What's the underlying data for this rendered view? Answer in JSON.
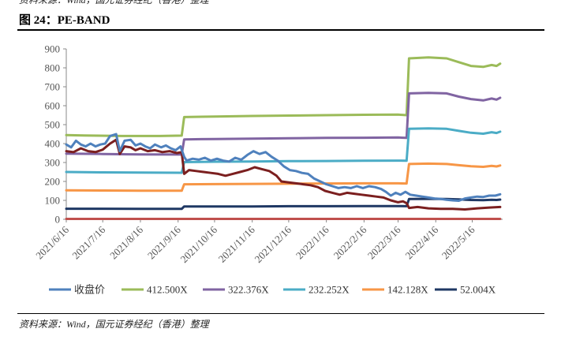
{
  "header": {
    "source_top": "资料来源：Wind，国元证券经纪（香港）整理",
    "figure_title": "图 24：PE-BAND"
  },
  "footer": {
    "source": "资料来源：Wind，国元证券经纪（香港）整理"
  },
  "chart_data": {
    "type": "line",
    "ylim": [
      0,
      900
    ],
    "yticks": [
      0,
      100,
      200,
      300,
      400,
      500,
      600,
      700,
      800,
      900
    ],
    "xlim": [
      "2021-06-16",
      "2022-06-10"
    ],
    "xtick_labels": [
      "2021/6/16",
      "2021/7/16",
      "2021/8/16",
      "2021/9/16",
      "2021/10/16",
      "2021/11/16",
      "2021/12/16",
      "2022/1/16",
      "2022/2/16",
      "2022/3/16",
      "2022/4/16",
      "2022/5/16"
    ],
    "xtick_dates": [
      "2021-06-16",
      "2021-07-16",
      "2021-08-16",
      "2021-09-16",
      "2021-10-16",
      "2021-11-16",
      "2021-12-16",
      "2022-01-16",
      "2022-02-16",
      "2022-03-16",
      "2022-04-16",
      "2022-05-16"
    ],
    "grid": false,
    "legend_position": "bottom",
    "series": [
      {
        "name": "收盘价",
        "color": "#4F81BD",
        "points": [
          [
            "2021-06-16",
            395
          ],
          [
            "2021-06-20",
            380
          ],
          [
            "2021-06-24",
            415
          ],
          [
            "2021-06-28",
            395
          ],
          [
            "2021-07-02",
            385
          ],
          [
            "2021-07-06",
            400
          ],
          [
            "2021-07-10",
            385
          ],
          [
            "2021-07-14",
            395
          ],
          [
            "2021-07-18",
            400
          ],
          [
            "2021-07-22",
            440
          ],
          [
            "2021-07-27",
            450
          ],
          [
            "2021-07-30",
            360
          ],
          [
            "2021-08-03",
            415
          ],
          [
            "2021-08-08",
            420
          ],
          [
            "2021-08-12",
            390
          ],
          [
            "2021-08-16",
            400
          ],
          [
            "2021-08-20",
            385
          ],
          [
            "2021-08-24",
            375
          ],
          [
            "2021-08-28",
            395
          ],
          [
            "2021-09-02",
            380
          ],
          [
            "2021-09-06",
            390
          ],
          [
            "2021-09-10",
            375
          ],
          [
            "2021-09-14",
            365
          ],
          [
            "2021-09-18",
            385
          ],
          [
            "2021-09-21",
            330
          ],
          [
            "2021-09-23",
            310
          ],
          [
            "2021-09-28",
            320
          ],
          [
            "2021-10-03",
            315
          ],
          [
            "2021-10-08",
            325
          ],
          [
            "2021-10-13",
            310
          ],
          [
            "2021-10-18",
            320
          ],
          [
            "2021-10-23",
            310
          ],
          [
            "2021-10-28",
            305
          ],
          [
            "2021-11-02",
            325
          ],
          [
            "2021-11-07",
            315
          ],
          [
            "2021-11-12",
            340
          ],
          [
            "2021-11-17",
            360
          ],
          [
            "2021-11-22",
            345
          ],
          [
            "2021-11-27",
            355
          ],
          [
            "2021-12-02",
            330
          ],
          [
            "2021-12-07",
            310
          ],
          [
            "2021-12-12",
            280
          ],
          [
            "2021-12-17",
            260
          ],
          [
            "2021-12-22",
            255
          ],
          [
            "2021-12-27",
            245
          ],
          [
            "2022-01-01",
            240
          ],
          [
            "2022-01-06",
            215
          ],
          [
            "2022-01-11",
            200
          ],
          [
            "2022-01-16",
            185
          ],
          [
            "2022-01-21",
            175
          ],
          [
            "2022-01-26",
            165
          ],
          [
            "2022-01-31",
            170
          ],
          [
            "2022-02-05",
            165
          ],
          [
            "2022-02-10",
            175
          ],
          [
            "2022-02-15",
            165
          ],
          [
            "2022-02-20",
            175
          ],
          [
            "2022-02-25",
            170
          ],
          [
            "2022-03-02",
            160
          ],
          [
            "2022-03-06",
            145
          ],
          [
            "2022-03-10",
            125
          ],
          [
            "2022-03-14",
            140
          ],
          [
            "2022-03-18",
            130
          ],
          [
            "2022-03-22",
            145
          ],
          [
            "2022-03-26",
            130
          ],
          [
            "2022-03-31",
            125
          ],
          [
            "2022-04-05",
            120
          ],
          [
            "2022-04-10",
            115
          ],
          [
            "2022-04-15",
            110
          ],
          [
            "2022-04-20",
            108
          ],
          [
            "2022-04-25",
            103
          ],
          [
            "2022-04-30",
            100
          ],
          [
            "2022-05-05",
            98
          ],
          [
            "2022-05-10",
            110
          ],
          [
            "2022-05-15",
            115
          ],
          [
            "2022-05-20",
            120
          ],
          [
            "2022-05-25",
            118
          ],
          [
            "2022-05-30",
            125
          ],
          [
            "2022-06-04",
            125
          ],
          [
            "2022-06-08",
            132
          ]
        ]
      },
      {
        "name": "412.500X",
        "color": "#9BBB59",
        "points": [
          [
            "2021-06-16",
            445
          ],
          [
            "2021-07-01",
            443
          ],
          [
            "2021-08-01",
            440
          ],
          [
            "2021-09-01",
            440
          ],
          [
            "2021-09-19",
            442
          ],
          [
            "2021-09-21",
            540
          ],
          [
            "2021-10-16",
            543
          ],
          [
            "2021-11-16",
            546
          ],
          [
            "2021-12-16",
            548
          ],
          [
            "2022-01-16",
            550
          ],
          [
            "2022-02-16",
            552
          ],
          [
            "2022-03-16",
            553
          ],
          [
            "2022-03-23",
            550
          ],
          [
            "2022-03-25",
            850
          ],
          [
            "2022-04-10",
            855
          ],
          [
            "2022-04-25",
            850
          ],
          [
            "2022-05-05",
            830
          ],
          [
            "2022-05-15",
            810
          ],
          [
            "2022-05-25",
            805
          ],
          [
            "2022-06-01",
            815
          ],
          [
            "2022-06-05",
            810
          ],
          [
            "2022-06-08",
            822
          ]
        ]
      },
      {
        "name": "322.376X",
        "color": "#8064A2",
        "points": [
          [
            "2021-06-16",
            347
          ],
          [
            "2021-07-16",
            345
          ],
          [
            "2021-08-16",
            343
          ],
          [
            "2021-09-19",
            342
          ],
          [
            "2021-09-21",
            422
          ],
          [
            "2021-10-16",
            424
          ],
          [
            "2021-11-16",
            426
          ],
          [
            "2021-12-16",
            428
          ],
          [
            "2022-01-16",
            430
          ],
          [
            "2022-02-16",
            431
          ],
          [
            "2022-03-16",
            432
          ],
          [
            "2022-03-23",
            430
          ],
          [
            "2022-03-25",
            665
          ],
          [
            "2022-04-10",
            668
          ],
          [
            "2022-04-25",
            665
          ],
          [
            "2022-05-05",
            648
          ],
          [
            "2022-05-15",
            635
          ],
          [
            "2022-05-25",
            628
          ],
          [
            "2022-06-01",
            638
          ],
          [
            "2022-06-05",
            632
          ],
          [
            "2022-06-08",
            642
          ]
        ]
      },
      {
        "name": "232.252X",
        "color": "#4BACC6",
        "points": [
          [
            "2021-06-16",
            250
          ],
          [
            "2021-07-16",
            248
          ],
          [
            "2021-08-16",
            247
          ],
          [
            "2021-09-19",
            246
          ],
          [
            "2021-09-21",
            302
          ],
          [
            "2021-10-16",
            304
          ],
          [
            "2021-11-16",
            305
          ],
          [
            "2021-12-16",
            307
          ],
          [
            "2022-01-16",
            308
          ],
          [
            "2022-02-16",
            309
          ],
          [
            "2022-03-16",
            310
          ],
          [
            "2022-03-23",
            309
          ],
          [
            "2022-03-25",
            478
          ],
          [
            "2022-04-10",
            480
          ],
          [
            "2022-04-25",
            478
          ],
          [
            "2022-05-05",
            467
          ],
          [
            "2022-05-15",
            457
          ],
          [
            "2022-05-25",
            452
          ],
          [
            "2022-06-01",
            460
          ],
          [
            "2022-06-05",
            456
          ],
          [
            "2022-06-08",
            463
          ]
        ]
      },
      {
        "name": "142.128X",
        "color": "#F79646",
        "points": [
          [
            "2021-06-16",
            153
          ],
          [
            "2021-07-16",
            152
          ],
          [
            "2021-08-16",
            151
          ],
          [
            "2021-09-19",
            151
          ],
          [
            "2021-09-21",
            185
          ],
          [
            "2021-10-16",
            186
          ],
          [
            "2021-11-16",
            187
          ],
          [
            "2021-12-16",
            188
          ],
          [
            "2022-01-16",
            189
          ],
          [
            "2022-02-16",
            190
          ],
          [
            "2022-03-16",
            190
          ],
          [
            "2022-03-23",
            189
          ],
          [
            "2022-03-25",
            292
          ],
          [
            "2022-04-10",
            294
          ],
          [
            "2022-04-25",
            292
          ],
          [
            "2022-05-05",
            286
          ],
          [
            "2022-05-15",
            280
          ],
          [
            "2022-05-25",
            277
          ],
          [
            "2022-06-01",
            282
          ],
          [
            "2022-06-05",
            279
          ],
          [
            "2022-06-08",
            284
          ]
        ]
      },
      {
        "name": "52.004X",
        "color": "#1F3864",
        "points": [
          [
            "2021-06-16",
            56
          ],
          [
            "2021-07-16",
            56
          ],
          [
            "2021-08-16",
            55
          ],
          [
            "2021-09-19",
            55
          ],
          [
            "2021-09-21",
            68
          ],
          [
            "2021-10-16",
            68
          ],
          [
            "2021-11-16",
            68
          ],
          [
            "2021-12-16",
            69
          ],
          [
            "2022-01-16",
            69
          ],
          [
            "2022-02-16",
            70
          ],
          [
            "2022-03-16",
            70
          ],
          [
            "2022-03-23",
            69
          ],
          [
            "2022-03-25",
            107
          ],
          [
            "2022-04-10",
            108
          ],
          [
            "2022-04-25",
            107
          ],
          [
            "2022-05-05",
            105
          ],
          [
            "2022-05-15",
            102
          ],
          [
            "2022-05-25",
            101
          ],
          [
            "2022-06-01",
            103
          ],
          [
            "2022-06-05",
            102
          ],
          [
            "2022-06-08",
            104
          ]
        ]
      },
      {
        "name": "",
        "color": "#7B1F1F",
        "points": [
          [
            "2021-06-16",
            360
          ],
          [
            "2021-06-22",
            355
          ],
          [
            "2021-06-28",
            375
          ],
          [
            "2021-07-04",
            360
          ],
          [
            "2021-07-10",
            355
          ],
          [
            "2021-07-16",
            368
          ],
          [
            "2021-07-22",
            400
          ],
          [
            "2021-07-27",
            420
          ],
          [
            "2021-07-30",
            345
          ],
          [
            "2021-08-03",
            385
          ],
          [
            "2021-08-08",
            380
          ],
          [
            "2021-08-12",
            365
          ],
          [
            "2021-08-16",
            375
          ],
          [
            "2021-08-22",
            360
          ],
          [
            "2021-08-28",
            365
          ],
          [
            "2021-09-03",
            355
          ],
          [
            "2021-09-09",
            360
          ],
          [
            "2021-09-15",
            350
          ],
          [
            "2021-09-19",
            355
          ],
          [
            "2021-09-21",
            240
          ],
          [
            "2021-09-25",
            260
          ],
          [
            "2021-10-01",
            255
          ],
          [
            "2021-10-07",
            250
          ],
          [
            "2021-10-13",
            245
          ],
          [
            "2021-10-19",
            240
          ],
          [
            "2021-10-25",
            230
          ],
          [
            "2021-10-31",
            240
          ],
          [
            "2021-11-06",
            250
          ],
          [
            "2021-11-12",
            260
          ],
          [
            "2021-11-18",
            275
          ],
          [
            "2021-11-24",
            265
          ],
          [
            "2021-11-30",
            255
          ],
          [
            "2021-12-06",
            230
          ],
          [
            "2021-12-10",
            200
          ],
          [
            "2021-12-16",
            195
          ],
          [
            "2021-12-22",
            190
          ],
          [
            "2021-12-28",
            185
          ],
          [
            "2022-01-03",
            180
          ],
          [
            "2022-01-09",
            170
          ],
          [
            "2022-01-15",
            150
          ],
          [
            "2022-01-21",
            140
          ],
          [
            "2022-01-27",
            130
          ],
          [
            "2022-02-02",
            140
          ],
          [
            "2022-02-08",
            135
          ],
          [
            "2022-02-14",
            130
          ],
          [
            "2022-02-20",
            125
          ],
          [
            "2022-02-26",
            120
          ],
          [
            "2022-03-04",
            115
          ],
          [
            "2022-03-10",
            100
          ],
          [
            "2022-03-16",
            90
          ],
          [
            "2022-03-20",
            95
          ],
          [
            "2022-03-23",
            85
          ],
          [
            "2022-03-25",
            60
          ],
          [
            "2022-04-01",
            65
          ],
          [
            "2022-04-10",
            58
          ],
          [
            "2022-04-20",
            55
          ],
          [
            "2022-04-30",
            55
          ],
          [
            "2022-05-10",
            52
          ],
          [
            "2022-05-20",
            58
          ],
          [
            "2022-05-30",
            62
          ],
          [
            "2022-06-08",
            65
          ]
        ]
      },
      {
        "name": "",
        "color": "#C0504D",
        "points": [
          [
            "2021-06-16",
            2
          ],
          [
            "2022-06-08",
            2
          ]
        ]
      }
    ]
  }
}
